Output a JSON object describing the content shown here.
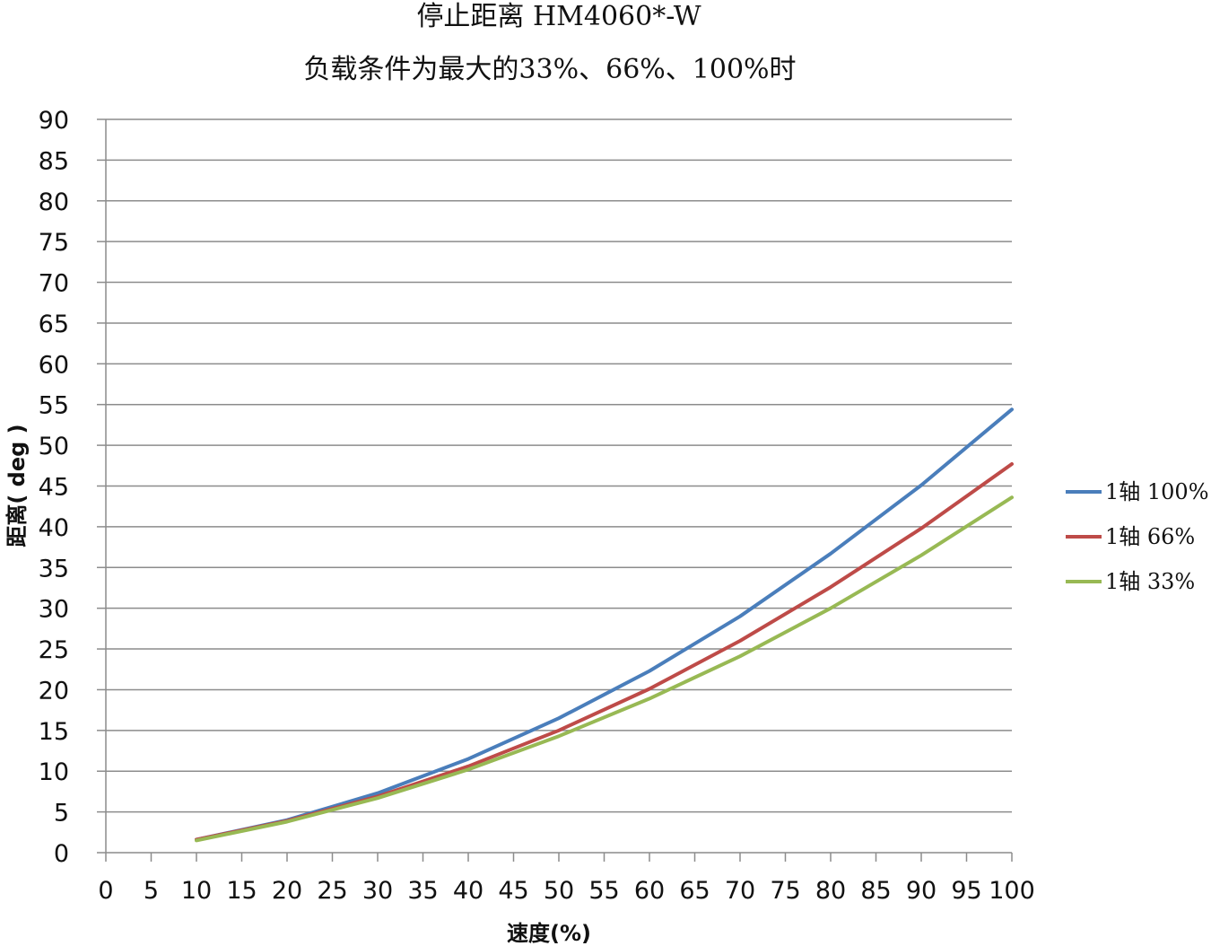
{
  "chart_data": {
    "type": "line",
    "title": "停止距离 HM4060*-W",
    "subtitle": "负载条件为最大的33%、66%、100%时",
    "xlabel": "速度(%)",
    "ylabel": "距离( deg )",
    "xlim": [
      0,
      100
    ],
    "ylim": [
      0,
      90
    ],
    "x_ticks": [
      0,
      5,
      10,
      15,
      20,
      25,
      30,
      35,
      40,
      45,
      50,
      55,
      60,
      65,
      70,
      75,
      80,
      85,
      90,
      95,
      100
    ],
    "y_ticks": [
      0,
      5,
      10,
      15,
      20,
      25,
      30,
      35,
      40,
      45,
      50,
      55,
      60,
      65,
      70,
      75,
      80,
      85,
      90
    ],
    "grid": "horizontal",
    "legend_position": "right",
    "x": [
      10,
      20,
      30,
      40,
      50,
      60,
      70,
      80,
      90,
      100
    ],
    "series": [
      {
        "name": "1轴 100%",
        "color": "#4a7ebb",
        "values": [
          1.6,
          4.0,
          7.3,
          11.5,
          16.5,
          22.3,
          29.0,
          36.7,
          45.1,
          54.4
        ]
      },
      {
        "name": "1轴 66%",
        "color": "#be4b48",
        "values": [
          1.6,
          3.9,
          6.9,
          10.6,
          15.0,
          20.1,
          26.0,
          32.6,
          39.8,
          47.7
        ]
      },
      {
        "name": "1轴 33%",
        "color": "#98b954",
        "values": [
          1.5,
          3.8,
          6.7,
          10.2,
          14.3,
          18.9,
          24.1,
          30.0,
          36.5,
          43.6
        ]
      }
    ]
  }
}
